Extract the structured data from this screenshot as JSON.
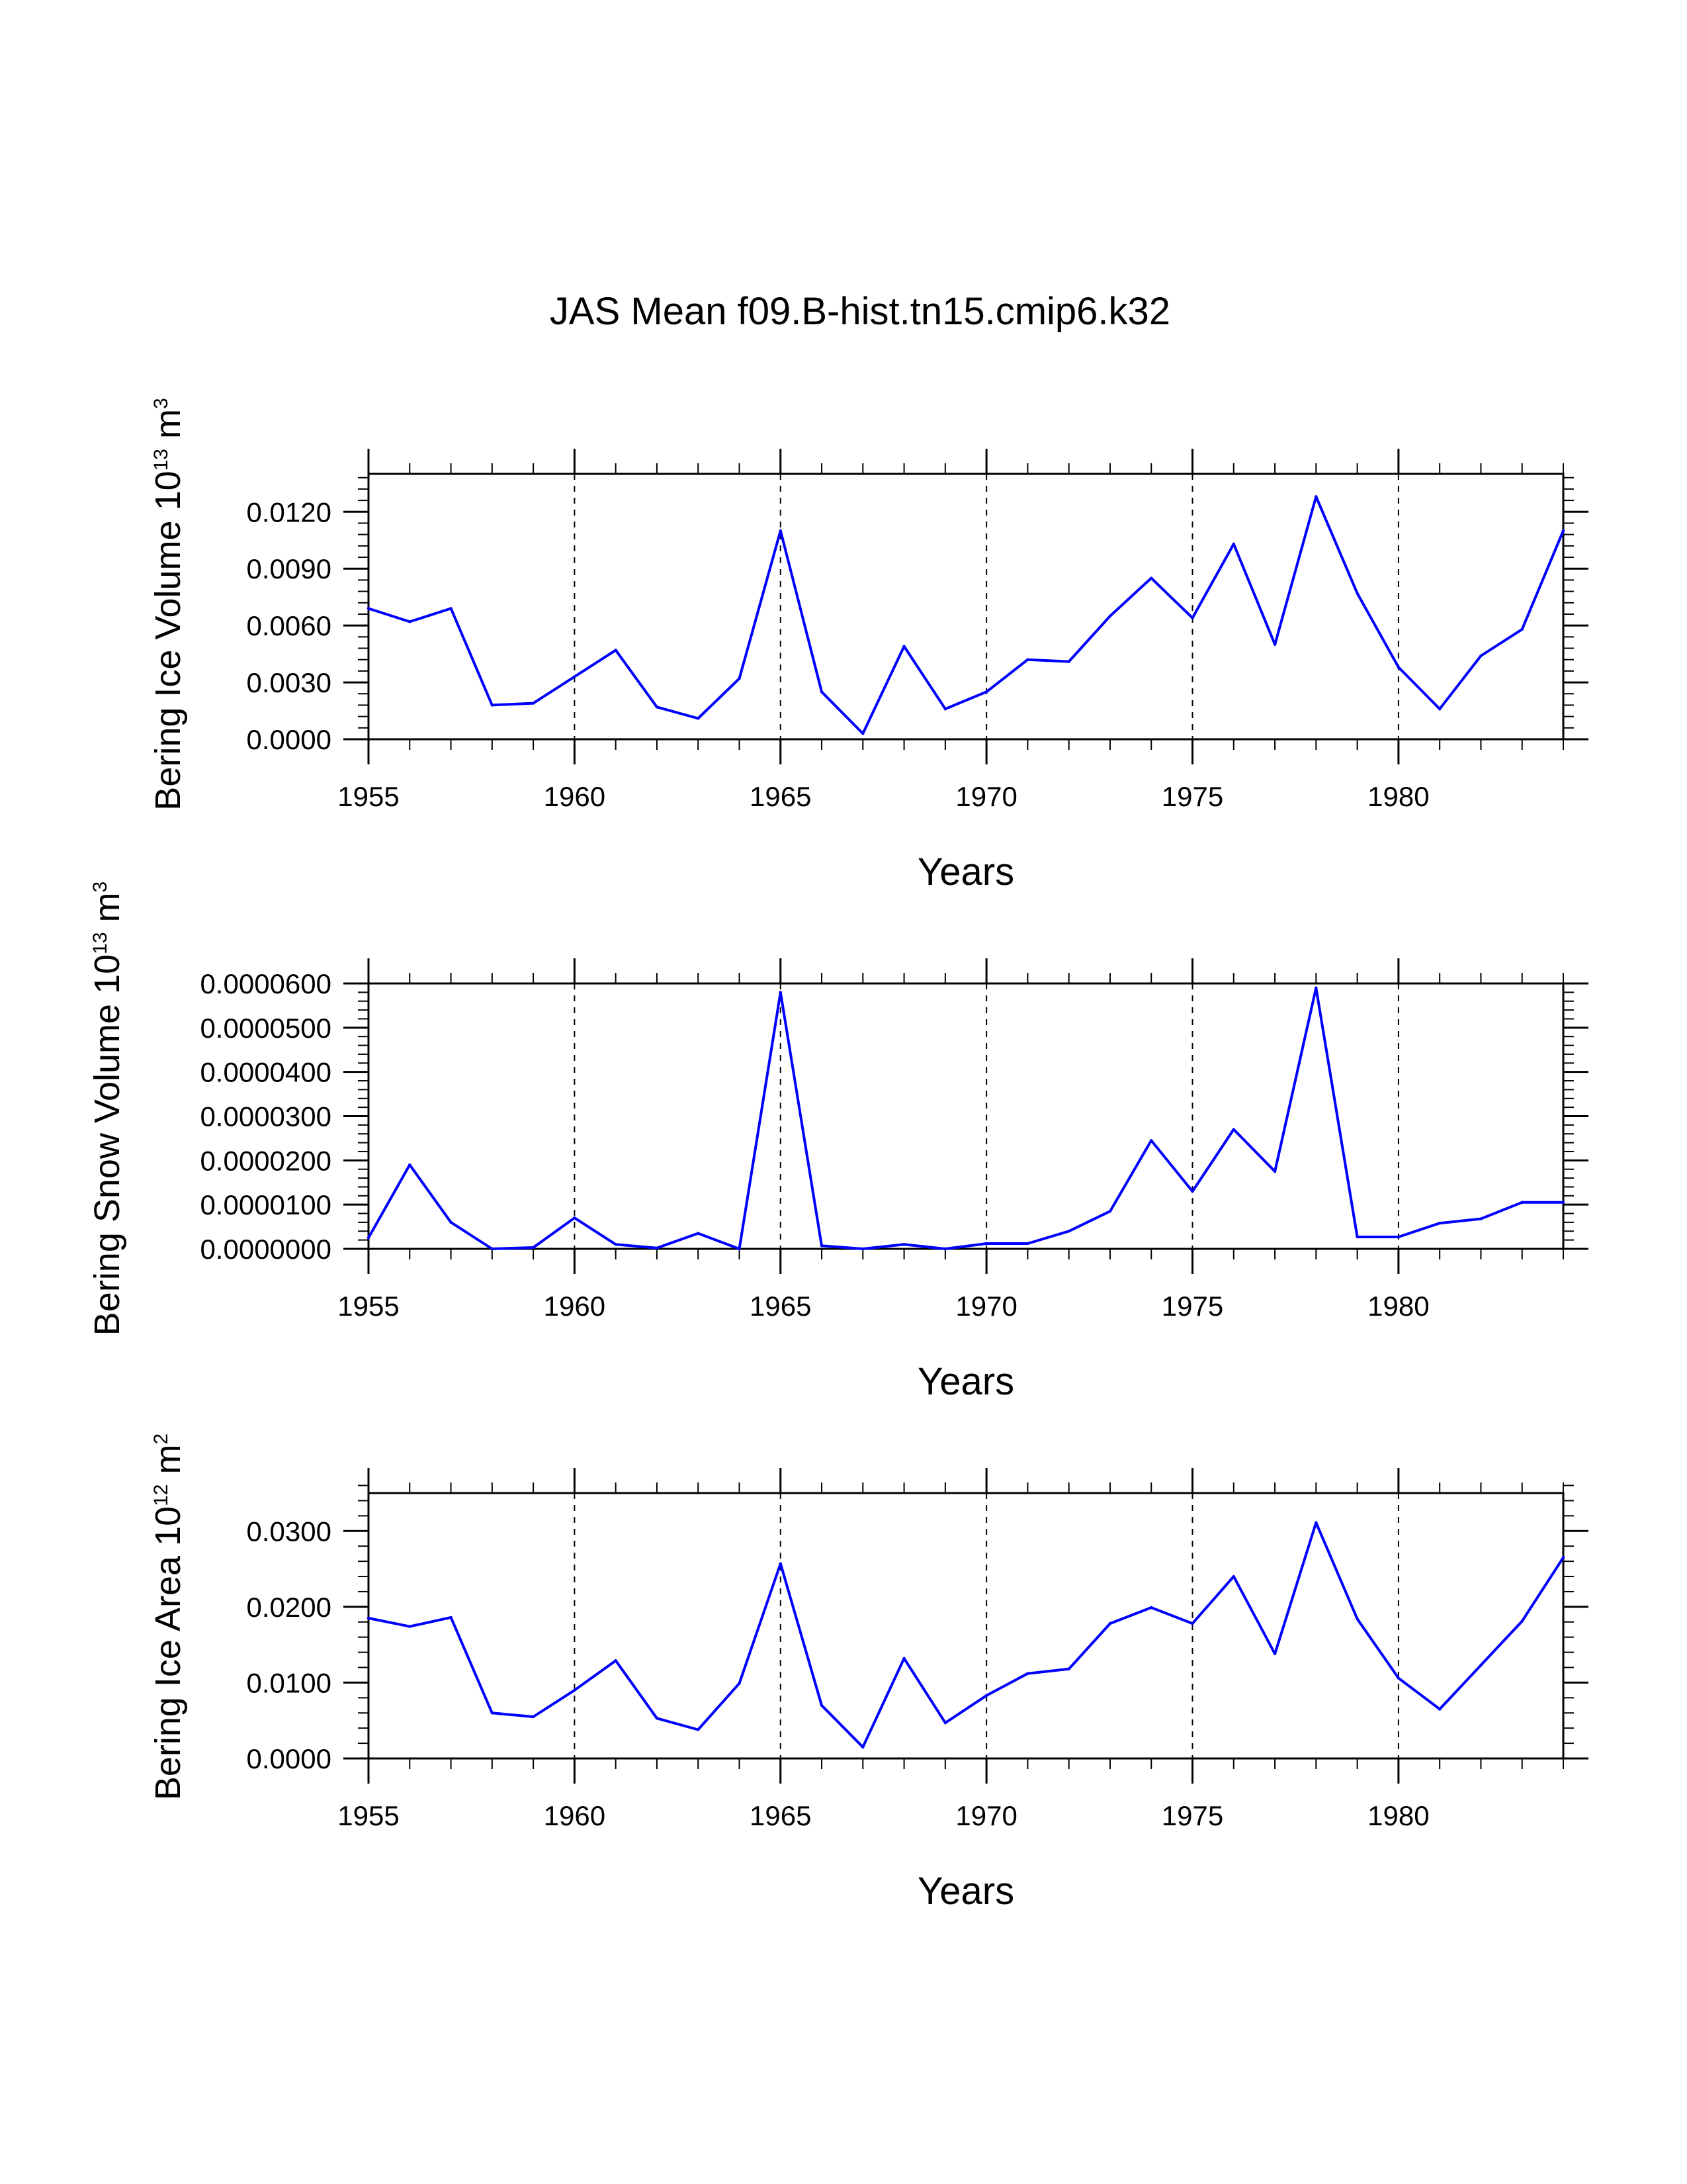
{
  "title": "JAS Mean f09.B-hist.tn15.cmip6.k32",
  "colors": {
    "series": "#0000ff",
    "axis": "#000000",
    "grid": "#000000"
  },
  "chart_data": [
    {
      "type": "line",
      "title": "JAS Mean f09.B-hist.tn15.cmip6.k32",
      "xlabel": "Years",
      "ylabel_main": "Bering Ice Volume 10",
      "ylabel_exp": "13",
      "ylabel_unit": " m",
      "ylabel_unit_exp": "3",
      "xlim": [
        1955,
        1984
      ],
      "ylim": [
        0,
        0.014
      ],
      "x_major_ticks": [
        1955,
        1960,
        1965,
        1970,
        1975,
        1980
      ],
      "x_tick_labels": [
        "1955",
        "1960",
        "1965",
        "1970",
        "1975",
        "1980"
      ],
      "x_minor_step": 1,
      "y_major_ticks": [
        0,
        0.003,
        0.006,
        0.009,
        0.012
      ],
      "y_tick_labels": [
        "0.0000",
        "0.0030",
        "0.0060",
        "0.0090",
        "0.0120"
      ],
      "y_minor_step": 0.0006,
      "grid_x": [
        1960,
        1965,
        1970,
        1975,
        1980
      ],
      "series": [
        {
          "name": "Bering Ice Volume",
          "x": [
            1955,
            1956,
            1957,
            1958,
            1959,
            1960,
            1961,
            1962,
            1963,
            1964,
            1965,
            1966,
            1967,
            1968,
            1969,
            1970,
            1971,
            1972,
            1973,
            1974,
            1975,
            1976,
            1977,
            1978,
            1979,
            1980,
            1981,
            1982,
            1983,
            1984
          ],
          "values": [
            0.0069,
            0.0062,
            0.0069,
            0.0018,
            0.0019,
            0.0033,
            0.0047,
            0.0017,
            0.0011,
            0.0032,
            0.011,
            0.0025,
            0.0003,
            0.0049,
            0.0016,
            0.0025,
            0.0042,
            0.0041,
            0.0065,
            0.0085,
            0.0064,
            0.0103,
            0.005,
            0.0128,
            0.0077,
            0.0038,
            0.0016,
            0.0044,
            0.0058,
            0.011
          ]
        }
      ]
    },
    {
      "type": "line",
      "xlabel": "Years",
      "ylabel_main": "Bering Snow Volume 10",
      "ylabel_exp": "13",
      "ylabel_unit": " m",
      "ylabel_unit_exp": "3",
      "xlim": [
        1955,
        1984
      ],
      "ylim": [
        0,
        6e-05
      ],
      "x_major_ticks": [
        1955,
        1960,
        1965,
        1970,
        1975,
        1980
      ],
      "x_tick_labels": [
        "1955",
        "1960",
        "1965",
        "1970",
        "1975",
        "1980"
      ],
      "x_minor_step": 1,
      "y_major_ticks": [
        0,
        1e-05,
        2e-05,
        3e-05,
        4e-05,
        5e-05,
        6e-05
      ],
      "y_tick_labels": [
        "0.0000000",
        "0.0000100",
        "0.0000200",
        "0.0000300",
        "0.0000400",
        "0.0000500",
        "0.0000600"
      ],
      "y_minor_step": 2e-06,
      "grid_x": [
        1960,
        1965,
        1970,
        1975,
        1980
      ],
      "series": [
        {
          "name": "Bering Snow Volume",
          "x": [
            1955,
            1956,
            1957,
            1958,
            1959,
            1960,
            1961,
            1962,
            1963,
            1964,
            1965,
            1966,
            1967,
            1968,
            1969,
            1970,
            1971,
            1972,
            1973,
            1974,
            1975,
            1976,
            1977,
            1978,
            1979,
            1980,
            1981,
            1982,
            1983,
            1984
          ],
          "values": [
            2.5e-06,
            1.9e-05,
            6e-06,
            0.0,
            3e-07,
            7e-06,
            1e-06,
            2e-07,
            3.5e-06,
            0.0,
            5.8e-05,
            7e-07,
            0.0,
            1e-06,
            0.0,
            1.2e-06,
            1.2e-06,
            4e-06,
            8.5e-06,
            2.45e-05,
            1.3e-05,
            2.7e-05,
            1.75e-05,
            5.9e-05,
            2.7e-06,
            2.7e-06,
            5.8e-06,
            6.8e-06,
            1.05e-05,
            1.05e-05
          ]
        }
      ]
    },
    {
      "type": "line",
      "xlabel": "Years",
      "ylabel_main": "Bering Ice Area 10",
      "ylabel_exp": "12",
      "ylabel_unit": " m",
      "ylabel_unit_exp": "2",
      "xlim": [
        1955,
        1984
      ],
      "ylim": [
        0,
        0.035
      ],
      "x_major_ticks": [
        1955,
        1960,
        1965,
        1970,
        1975,
        1980
      ],
      "x_tick_labels": [
        "1955",
        "1960",
        "1965",
        "1970",
        "1975",
        "1980"
      ],
      "x_minor_step": 1,
      "y_major_ticks": [
        0,
        0.01,
        0.02,
        0.03
      ],
      "y_tick_labels": [
        "0.0000",
        "0.0100",
        "0.0200",
        "0.0300"
      ],
      "y_minor_step": 0.002,
      "grid_x": [
        1960,
        1965,
        1970,
        1975,
        1980
      ],
      "series": [
        {
          "name": "Bering Ice Area",
          "x": [
            1955,
            1956,
            1957,
            1958,
            1959,
            1960,
            1961,
            1962,
            1963,
            1964,
            1965,
            1966,
            1967,
            1968,
            1969,
            1970,
            1971,
            1972,
            1973,
            1974,
            1975,
            1976,
            1977,
            1978,
            1979,
            1980,
            1981,
            1982,
            1983,
            1984
          ],
          "values": [
            0.0185,
            0.0174,
            0.0186,
            0.006,
            0.0055,
            0.009,
            0.0129,
            0.0053,
            0.0038,
            0.0099,
            0.0257,
            0.007,
            0.0015,
            0.0132,
            0.0047,
            0.0083,
            0.0112,
            0.0118,
            0.0178,
            0.0199,
            0.0178,
            0.024,
            0.0138,
            0.0311,
            0.0184,
            0.0106,
            0.0065,
            0.0123,
            0.0181,
            0.0265
          ]
        }
      ]
    }
  ]
}
